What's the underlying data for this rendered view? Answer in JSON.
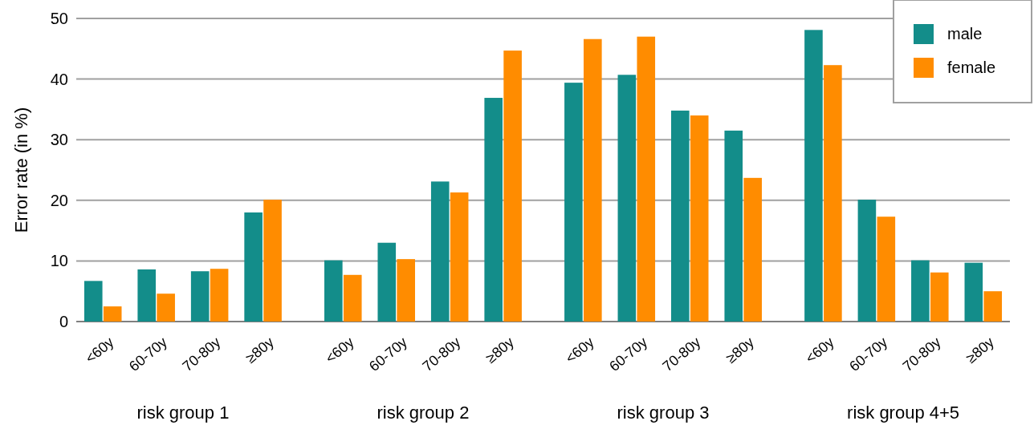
{
  "chart_data": {
    "type": "bar",
    "ylabel": "Error rate (in %)",
    "categories": [
      "<60y",
      "60-70y",
      "70-80y",
      "≥80y",
      "<60y",
      "60-70y",
      "70-80y",
      "≥80y",
      "<60y",
      "60-70y",
      "70-80y",
      "≥80y",
      "<60y",
      "60-70y",
      "70-80y",
      "≥80y"
    ],
    "series": [
      {
        "name": "male",
        "color": "#138d8a",
        "values": [
          6.7,
          8.6,
          8.3,
          18.0,
          10.1,
          13.0,
          23.1,
          36.9,
          39.4,
          40.7,
          34.8,
          31.5,
          48.1,
          20.1,
          10.1,
          9.7
        ]
      },
      {
        "name": "female",
        "color": "#ff8c00",
        "values": [
          2.5,
          4.6,
          8.7,
          20.1,
          7.7,
          10.3,
          21.3,
          44.7,
          46.6,
          47.0,
          34.0,
          23.7,
          42.3,
          17.3,
          8.1,
          5.0
        ]
      }
    ],
    "annotations": [
      "risk group 1",
      "risk group 2",
      "risk group 3",
      "risk group 4+5"
    ],
    "ylim": [
      0,
      50
    ],
    "yticks": [
      0,
      10,
      20,
      30,
      40,
      50
    ],
    "grid": "y",
    "legend": "top right"
  }
}
